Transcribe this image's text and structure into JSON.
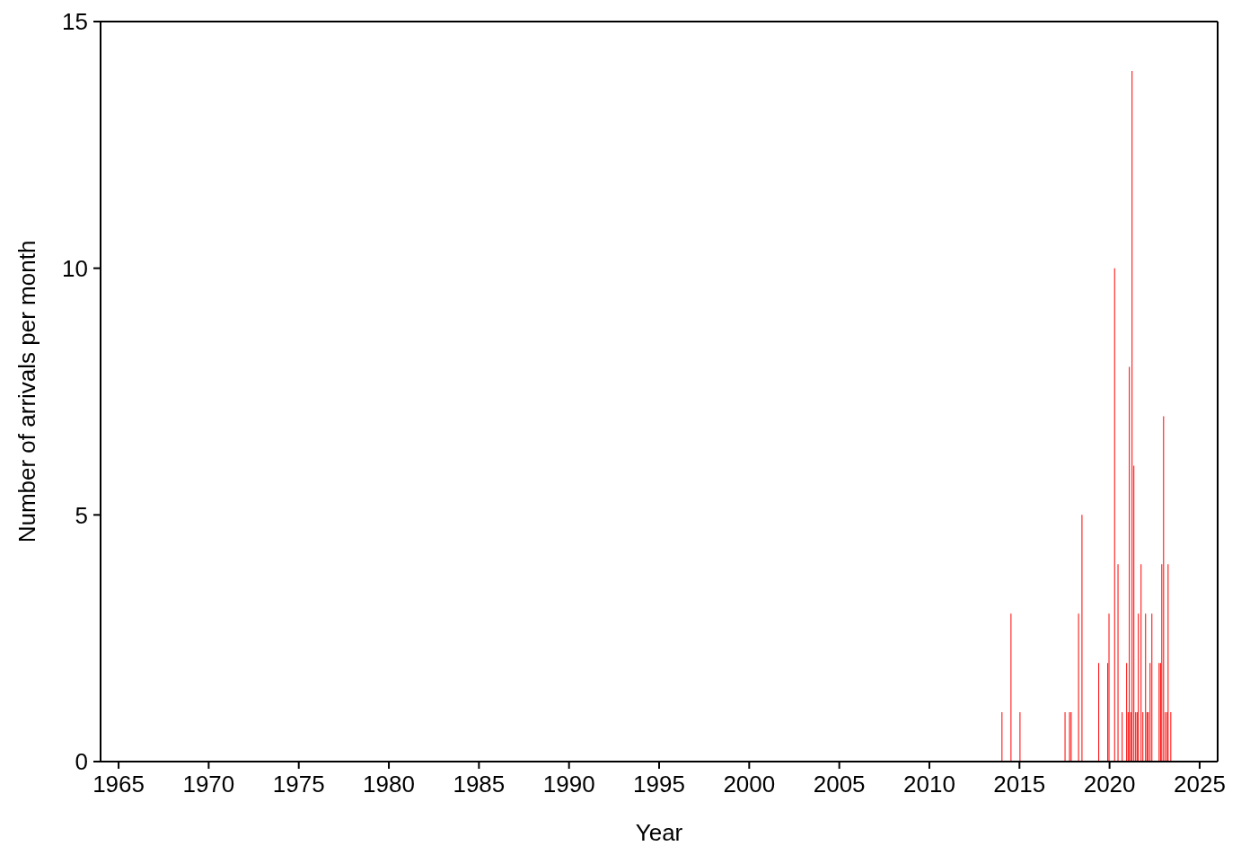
{
  "chart_data": {
    "type": "bar",
    "xlabel": "Year",
    "ylabel": "Number of arrivals per month",
    "x": [
      2014.03,
      2014.53,
      2015.03,
      2017.53,
      2017.78,
      2017.87,
      2018.28,
      2018.47,
      2019.4,
      2019.9,
      2019.97,
      2020.28,
      2020.47,
      2020.7,
      2020.95,
      2021.03,
      2021.1,
      2021.18,
      2021.25,
      2021.35,
      2021.45,
      2021.53,
      2021.6,
      2021.75,
      2021.85,
      2022.0,
      2022.08,
      2022.15,
      2022.25,
      2022.35,
      2022.75,
      2022.83,
      2022.9,
      2023.0,
      2023.1,
      2023.2,
      2023.25,
      2023.4
    ],
    "values": [
      1,
      3,
      1,
      1,
      1,
      1,
      3,
      5,
      2,
      2,
      3,
      10,
      4,
      1,
      2,
      1,
      8,
      1,
      14,
      6,
      1,
      1,
      3,
      4,
      1,
      3,
      1,
      1,
      2,
      3,
      2,
      2,
      4,
      7,
      1,
      1,
      4,
      1
    ],
    "color": "#ff0000",
    "xlim": [
      1964,
      2026
    ],
    "xticks": [
      1965,
      1970,
      1975,
      1980,
      1985,
      1990,
      1995,
      2000,
      2005,
      2010,
      2015,
      2020,
      2025
    ],
    "ylim": [
      0,
      15
    ],
    "yticks": [
      0,
      5,
      10,
      15
    ],
    "grid": false,
    "legend": false
  }
}
